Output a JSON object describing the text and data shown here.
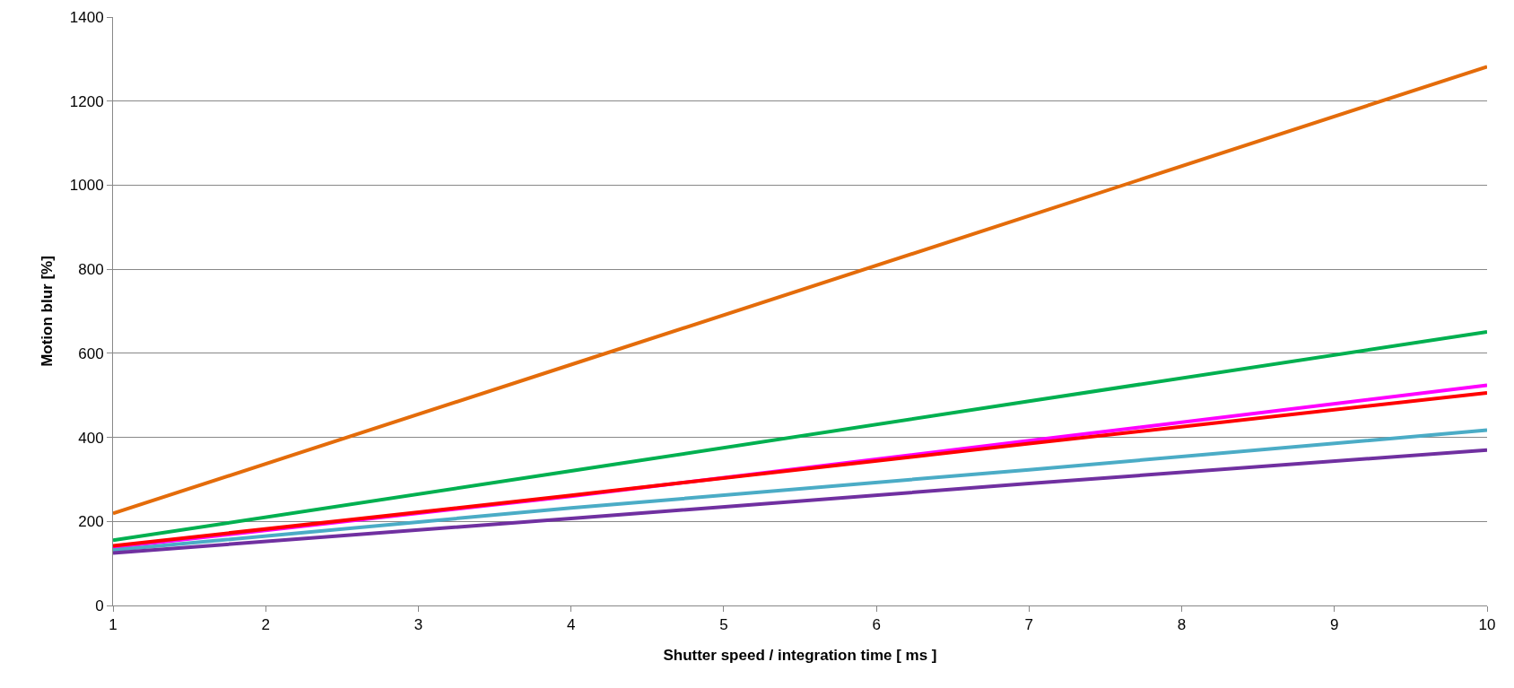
{
  "chart_data": {
    "type": "line",
    "xlabel": "Shutter speed / integration time [ ms ]",
    "ylabel": "Motion blur [%]",
    "x": [
      1,
      4,
      7,
      10
    ],
    "series": [
      {
        "color": "#e46c0a",
        "values": [
          219,
          573,
          927,
          1282
        ]
      },
      {
        "color": "#00b050",
        "values": [
          155,
          320,
          486,
          651
        ]
      },
      {
        "color": "#ff00ff",
        "values": [
          138,
          260,
          392,
          524
        ]
      },
      {
        "color": "#ff0000",
        "values": [
          142,
          262,
          385,
          506
        ]
      },
      {
        "color": "#4bacc6",
        "values": [
          132,
          232,
          323,
          417
        ]
      },
      {
        "color": "#7030a0",
        "values": [
          125,
          207,
          290,
          370
        ]
      }
    ],
    "xlim": [
      1,
      10
    ],
    "xticks": [
      1,
      2,
      3,
      4,
      5,
      6,
      7,
      8,
      9,
      10
    ],
    "ylim": [
      0,
      1400
    ],
    "yticks": [
      0,
      200,
      400,
      600,
      800,
      1000,
      1200,
      1400
    ],
    "grid": "y",
    "marker": "none",
    "line_style": "solid"
  }
}
